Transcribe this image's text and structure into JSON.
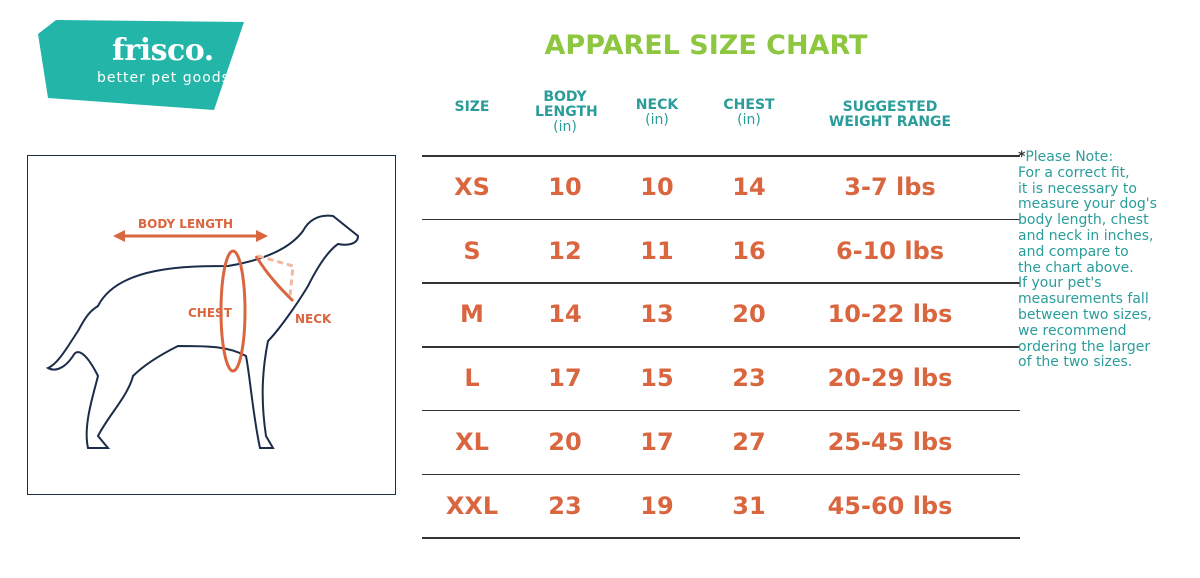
{
  "logo": {
    "name": "frisco.",
    "tagline": "better pet goods",
    "color": "#22b5a8"
  },
  "title": "APPAREL SIZE CHART",
  "columns": [
    {
      "label": "SIZE",
      "unit": ""
    },
    {
      "label": "BODY LENGTH",
      "unit": "(in)"
    },
    {
      "label": "NECK",
      "unit": "(in)"
    },
    {
      "label": "CHEST",
      "unit": "(in)"
    },
    {
      "label": "SUGGESTED WEIGHT RANGE",
      "unit": ""
    }
  ],
  "rows": [
    [
      "XS",
      "10",
      "10",
      "14",
      "3-7 lbs"
    ],
    [
      "S",
      "12",
      "11",
      "16",
      "6-10 lbs"
    ],
    [
      "M",
      "14",
      "13",
      "20",
      "10-22 lbs"
    ],
    [
      "L",
      "17",
      "15",
      "23",
      "20-29 lbs"
    ],
    [
      "XL",
      "20",
      "17",
      "27",
      "25-45 lbs"
    ],
    [
      "XXL",
      "23",
      "19",
      "31",
      "45-60 lbs"
    ]
  ],
  "note": {
    "star": "*",
    "text": "Please Note:\nFor a correct fit,\nit is necessary to\nmeasure your dog's\nbody length, chest\nand neck in inches,\nand compare to\nthe chart above.\nIf your pet's\nmeasurements fall\nbetween two sizes,\nwe recommend\nordering the larger\nof the two sizes."
  },
  "diagram": {
    "body_length": "BODY LENGTH",
    "chest": "CHEST",
    "neck": "NECK"
  },
  "colors": {
    "title": "#8dc63f",
    "header": "#2a9d9a",
    "values": "#d9663f"
  }
}
